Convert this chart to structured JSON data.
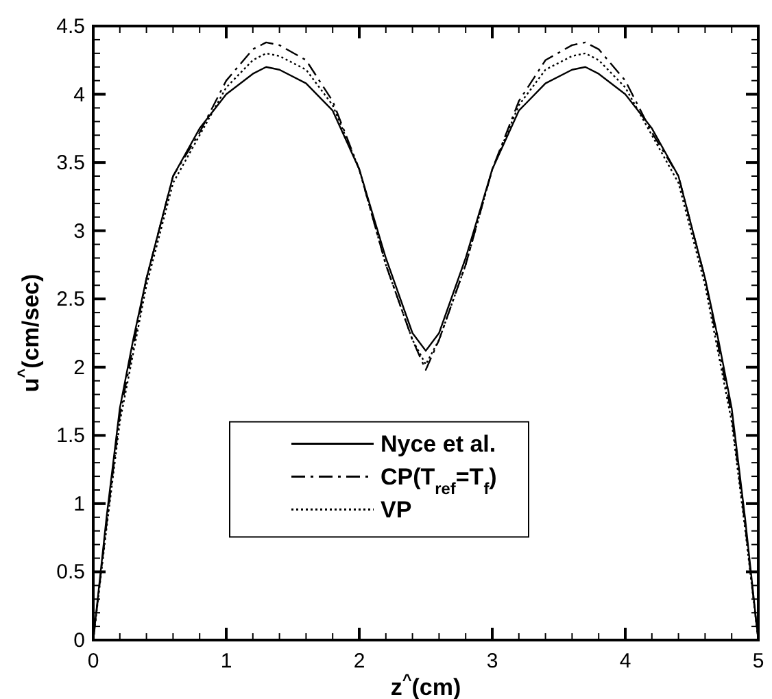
{
  "chart_data": {
    "type": "line",
    "xlabel": "z$^{^}$(cm)",
    "ylabel": "u$^{^}$(cm/sec)",
    "x": [
      0,
      0.1,
      0.2,
      0.3,
      0.4,
      0.6,
      0.8,
      1.0,
      1.2,
      1.3,
      1.4,
      1.6,
      1.8,
      2.0,
      2.2,
      2.4,
      2.5,
      2.6,
      2.8,
      3.0,
      3.2,
      3.4,
      3.6,
      3.7,
      3.8,
      4.0,
      4.2,
      4.4,
      4.6,
      4.7,
      4.8,
      4.9,
      5
    ],
    "series": [
      {
        "name": "Nyce et al.",
        "color": "#000000",
        "line_style": "solid",
        "values": [
          0,
          0.9,
          1.7,
          2.2,
          2.65,
          3.4,
          3.75,
          4.0,
          4.15,
          4.2,
          4.18,
          4.08,
          3.88,
          3.45,
          2.8,
          2.25,
          2.12,
          2.25,
          2.8,
          3.45,
          3.88,
          4.08,
          4.18,
          4.2,
          4.15,
          4.0,
          3.75,
          3.4,
          2.65,
          2.2,
          1.7,
          0.9,
          0
        ]
      },
      {
        "name": "CP(T$_{ref}$=T$_{f}$)",
        "color": "#000000",
        "line_style": "dashdot",
        "values": [
          0,
          0.85,
          1.65,
          2.15,
          2.65,
          3.4,
          3.72,
          4.1,
          4.33,
          4.38,
          4.36,
          4.25,
          3.95,
          3.45,
          2.75,
          2.2,
          1.98,
          2.2,
          2.75,
          3.45,
          3.95,
          4.25,
          4.36,
          4.38,
          4.33,
          4.1,
          3.72,
          3.4,
          2.65,
          2.15,
          1.65,
          0.85,
          0
        ]
      },
      {
        "name": "VP",
        "color": "#000000",
        "line_style": "dotted",
        "values": [
          0,
          0.82,
          1.6,
          2.1,
          2.6,
          3.35,
          3.7,
          4.05,
          4.25,
          4.3,
          4.28,
          4.18,
          3.92,
          3.45,
          2.75,
          2.2,
          2.02,
          2.2,
          2.75,
          3.45,
          3.92,
          4.18,
          4.28,
          4.3,
          4.25,
          4.05,
          3.7,
          3.35,
          2.6,
          2.1,
          1.6,
          0.82,
          0
        ]
      }
    ],
    "xlim": [
      0,
      5
    ],
    "ylim": [
      0,
      4.5
    ],
    "xticks": [
      0,
      {
        "value": 0.2,
        "label": null
      },
      {
        "value": 0.4,
        "label": null
      },
      {
        "value": 0.6,
        "label": null
      },
      {
        "value": 0.8,
        "label": null
      },
      1,
      {
        "value": 1.2,
        "label": null
      },
      {
        "value": 1.4,
        "label": null
      },
      {
        "value": 1.6,
        "label": null
      },
      {
        "value": 1.8,
        "label": null
      },
      2,
      {
        "value": 2.2,
        "label": null
      },
      {
        "value": 2.4,
        "label": null
      },
      {
        "value": 2.6,
        "label": null
      },
      {
        "value": 2.8,
        "label": null
      },
      3,
      {
        "value": 3.2,
        "label": null
      },
      {
        "value": 3.4,
        "label": null
      },
      {
        "value": 3.6,
        "label": null
      },
      {
        "value": 3.8,
        "label": null
      },
      4,
      {
        "value": 4.2,
        "label": null
      },
      {
        "value": 4.4,
        "label": null
      },
      {
        "value": 4.6,
        "label": null
      },
      {
        "value": 4.8,
        "label": null
      },
      5
    ],
    "yticks": [
      0,
      {
        "value": 0.1,
        "label": null
      },
      {
        "value": 0.2,
        "label": null
      },
      {
        "value": 0.3,
        "label": null
      },
      {
        "value": 0.4,
        "label": null
      },
      0.5,
      {
        "value": 0.6,
        "label": null
      },
      {
        "value": 0.7,
        "label": null
      },
      {
        "value": 0.8,
        "label": null
      },
      {
        "value": 0.9,
        "label": null
      },
      1,
      {
        "value": 1.1,
        "label": null
      },
      {
        "value": 1.2,
        "label": null
      },
      {
        "value": 1.3,
        "label": null
      },
      {
        "value": 1.4,
        "label": null
      },
      1.5,
      {
        "value": 1.6,
        "label": null
      },
      {
        "value": 1.7,
        "label": null
      },
      {
        "value": 1.8,
        "label": null
      },
      {
        "value": 1.9,
        "label": null
      },
      2,
      {
        "value": 2.1,
        "label": null
      },
      {
        "value": 2.2,
        "label": null
      },
      {
        "value": 2.3,
        "label": null
      },
      {
        "value": 2.4,
        "label": null
      },
      2.5,
      {
        "value": 2.6,
        "label": null
      },
      {
        "value": 2.7,
        "label": null
      },
      {
        "value": 2.8,
        "label": null
      },
      {
        "value": 2.9,
        "label": null
      },
      3,
      {
        "value": 3.1,
        "label": null
      },
      {
        "value": 3.2,
        "label": null
      },
      {
        "value": 3.3,
        "label": null
      },
      {
        "value": 3.4,
        "label": null
      },
      3.5,
      {
        "value": 3.6,
        "label": null
      },
      {
        "value": 3.7,
        "label": null
      },
      {
        "value": 3.8,
        "label": null
      },
      {
        "value": 3.9,
        "label": null
      },
      4,
      {
        "value": 4.1,
        "label": null
      },
      {
        "value": 4.2,
        "label": null
      },
      {
        "value": 4.3,
        "label": null
      },
      {
        "value": 4.4,
        "label": null
      },
      4.5
    ],
    "grid": false,
    "legend": "bottom",
    "marker": "none"
  }
}
